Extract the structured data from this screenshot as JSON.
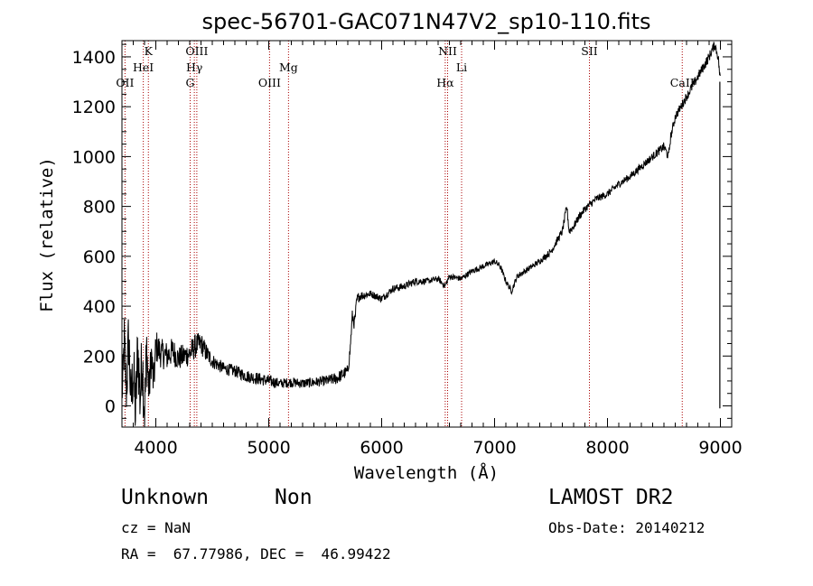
{
  "chart_data": {
    "type": "line",
    "title": "spec-56701-GAC071N47V2_sp10-110.fits",
    "xlabel": "Wavelength (Å)",
    "ylabel": "Flux (relative)",
    "xlim": [
      3700,
      9100
    ],
    "ylim": [
      -85,
      1465
    ],
    "x_ticks": [
      4000,
      5000,
      6000,
      7000,
      8000,
      9000
    ],
    "y_ticks": [
      0,
      200,
      400,
      600,
      800,
      1000,
      1200,
      1400
    ],
    "grid": false,
    "line_color": "#000000",
    "marker_color": "#aa0000",
    "series": [
      {
        "x": [
          3700,
          3720,
          3740,
          3760,
          3780,
          3800,
          3820,
          3840,
          3860,
          3880,
          3900,
          3920,
          3940,
          3960,
          3980,
          4000,
          4050,
          4100,
          4150,
          4200,
          4250,
          4300,
          4350,
          4400,
          4450,
          4500,
          4600,
          4700,
          4800,
          4900,
          5000,
          5100,
          5200,
          5300,
          5400,
          5500,
          5600,
          5700,
          5720,
          5740,
          5760,
          5780,
          5800,
          5850,
          5900,
          6000,
          6100,
          6200,
          6300,
          6400,
          6500,
          6560,
          6600,
          6700,
          6800,
          6900,
          7000,
          7050,
          7100,
          7150,
          7200,
          7300,
          7400,
          7500,
          7600,
          7640,
          7660,
          7700,
          7750,
          7800,
          7900,
          8000,
          8100,
          8200,
          8300,
          8400,
          8500,
          8540,
          8560,
          8600,
          8700,
          8800,
          8900,
          8950,
          8980,
          9000
        ],
        "y": [
          20,
          250,
          60,
          280,
          10,
          150,
          -40,
          240,
          30,
          200,
          -30,
          230,
          50,
          210,
          80,
          240,
          210,
          200,
          220,
          190,
          200,
          210,
          240,
          250,
          210,
          180,
          150,
          140,
          120,
          110,
          100,
          90,
          95,
          90,
          95,
          100,
          110,
          140,
          220,
          360,
          330,
          420,
          440,
          445,
          450,
          430,
          470,
          480,
          500,
          500,
          510,
          480,
          520,
          510,
          540,
          560,
          580,
          560,
          500,
          460,
          520,
          550,
          580,
          620,
          700,
          800,
          700,
          720,
          760,
          790,
          830,
          850,
          890,
          920,
          960,
          1000,
          1040,
          1000,
          1080,
          1160,
          1240,
          1320,
          1400,
          1450,
          1400,
          1300
        ],
        "noise": [
          40,
          140,
          120,
          150,
          130,
          150,
          150,
          150,
          150,
          140,
          150,
          150,
          80,
          90,
          80,
          70,
          60,
          60,
          55,
          50,
          50,
          50,
          50,
          45,
          40,
          30,
          25,
          25,
          25,
          25,
          25,
          20,
          20,
          20,
          20,
          20,
          25,
          25,
          25,
          25,
          30,
          30,
          20,
          18,
          15,
          15,
          15,
          15,
          15,
          12,
          12,
          12,
          12,
          12,
          12,
          12,
          12,
          12,
          12,
          12,
          12,
          12,
          12,
          14,
          16,
          18,
          18,
          16,
          15,
          15,
          15,
          15,
          15,
          15,
          16,
          16,
          18,
          18,
          18,
          18,
          18,
          20,
          20,
          20,
          20,
          20
        ]
      }
    ],
    "lines": [
      {
        "name": "OII",
        "wl": 3727,
        "row": 3
      },
      {
        "name": "HeI",
        "wl": 3889,
        "row": 2
      },
      {
        "name": "K",
        "wl": 3934,
        "row": 1
      },
      {
        "name": "G",
        "wl": 4304,
        "row": 3
      },
      {
        "name": "Hγ",
        "wl": 4341,
        "row": 2
      },
      {
        "name": "OIII",
        "wl": 4363,
        "row": 1
      },
      {
        "name": "OIII",
        "wl": 5007,
        "row": 3
      },
      {
        "name": "Mg",
        "wl": 5175,
        "row": 2
      },
      {
        "name": "Hα",
        "wl": 6563,
        "row": 3
      },
      {
        "name": "NII",
        "wl": 6584,
        "row": 1
      },
      {
        "name": "Li",
        "wl": 6708,
        "row": 2
      },
      {
        "name": "SII",
        "wl": 7840,
        "row": 1
      },
      {
        "name": "CaII",
        "wl": 8662,
        "row": 3
      }
    ]
  },
  "info": {
    "class": "Unknown",
    "subclass": "Non",
    "cz": "cz = NaN",
    "radec": "RA =  67.77986, DEC =  46.99422",
    "survey": "LAMOST DR2",
    "obs_date": "Obs-Date: 20140212"
  }
}
